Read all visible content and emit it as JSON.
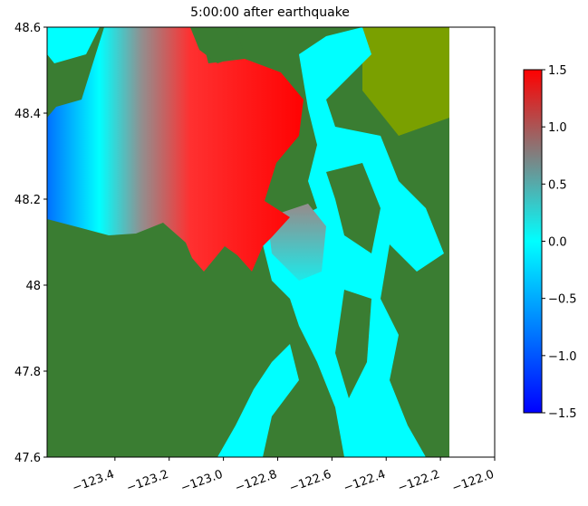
{
  "chart_data": {
    "type": "heatmap",
    "title": "5:00:00 after earthquake",
    "xlim": [
      -123.65,
      -122.0
    ],
    "xticks": [
      {
        "value": -123.4,
        "label": "−123.4"
      },
      {
        "value": -123.2,
        "label": "−123.2"
      },
      {
        "value": -123.0,
        "label": "−123.0"
      },
      {
        "value": -122.8,
        "label": "−122.8"
      },
      {
        "value": -122.6,
        "label": "−122.6"
      },
      {
        "value": -122.4,
        "label": "−122.4"
      },
      {
        "value": -122.2,
        "label": "−122.2"
      },
      {
        "value": -122.0,
        "label": "−122.0"
      }
    ],
    "ylim": [
      47.6,
      48.6
    ],
    "yticks": [
      47.6,
      47.8,
      48.0,
      48.2,
      48.4,
      48.6
    ],
    "colorbar": {
      "range": [
        -1.5,
        1.5
      ],
      "ticks": [
        {
          "value": -1.5,
          "label": "−1.5"
        },
        {
          "value": -1.0,
          "label": "−1.0"
        },
        {
          "value": -0.5,
          "label": "−0.5"
        },
        {
          "value": 0.0,
          "label": "0.0"
        },
        {
          "value": 0.5,
          "label": "0.5"
        },
        {
          "value": 1.0,
          "label": "1.0"
        },
        {
          "value": 1.5,
          "label": "1.5"
        }
      ],
      "colors": [
        "#0000ff",
        "#0080ff",
        "#00ffff",
        "#808080",
        "#ff0000"
      ]
    }
  }
}
